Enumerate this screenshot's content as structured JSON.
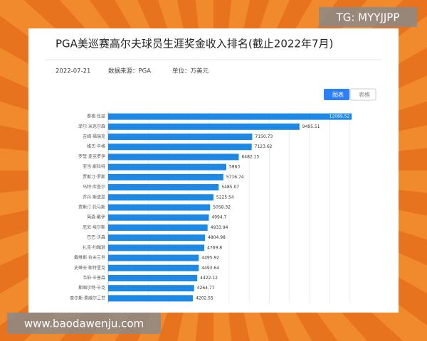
{
  "watermarks": {
    "top": "TG: MYYJJPP",
    "bottom": "www.baodawenju.com"
  },
  "header": {
    "date": "2022-07-21",
    "source": "数据来源：PGA",
    "unit": "单位：万美元"
  },
  "buttons": [
    "图表",
    "表格"
  ],
  "chart_data": {
    "type": "bar",
    "orientation": "horizontal",
    "title": "PGA美巡赛高尔夫球员生涯奖金收入排名(截止2022年7月)",
    "categories": [
      "泰格·伍兹",
      "菲尔·米克尔森",
      "吉姆·福瑞克",
      "维杰·辛格",
      "罗里·麦克罗伊",
      "亚当·斯科特",
      "贾斯汀·罗斯",
      "马特·库查尔",
      "乔丹·斯皮思",
      "贾斯汀·托马斯",
      "简森·戴伊",
      "厄尼·埃尔斯",
      "巴巴·沃森",
      "扎克·约翰逊",
      "戴维斯·拉夫三世",
      "史蒂夫·斯特里克",
      "韦伯·辛普森",
      "斯图尔特·辛克",
      "查尔斯·豪威尔三世"
    ],
    "values": [
      12089.52,
      9495.51,
      7150.73,
      7123.62,
      6482.15,
      5863,
      5716.74,
      5485.07,
      5225.54,
      5058.32,
      4994.7,
      4933.94,
      4804.98,
      4769.8,
      4495.92,
      4493.64,
      4422.12,
      4264.77,
      4202.55
    ],
    "color": "#1e88e5",
    "xlim": [
      0,
      13000
    ]
  }
}
